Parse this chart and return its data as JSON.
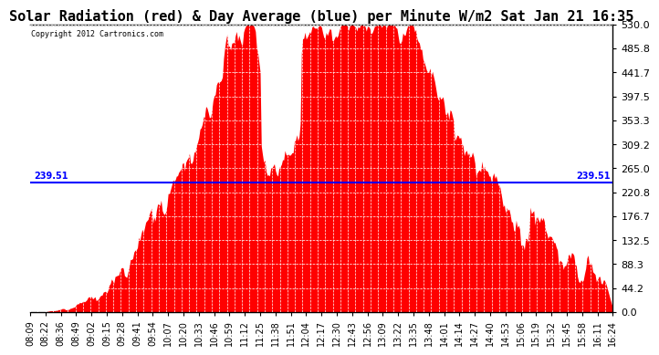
{
  "title": "Solar Radiation (red) & Day Average (blue) per Minute W/m2 Sat Jan 21 16:35",
  "copyright_text": "Copyright 2012 Cartronics.com",
  "avg_value": 239.51,
  "ymin": 0.0,
  "ymax": 530.0,
  "yticks": [
    0.0,
    44.2,
    88.3,
    132.5,
    176.7,
    220.8,
    265.0,
    309.2,
    353.3,
    397.5,
    441.7,
    485.8,
    530.0
  ],
  "bar_color": "#FF0000",
  "line_color": "#0000FF",
  "bg_color": "#FFFFFF",
  "title_fontsize": 11,
  "label_fontsize": 7,
  "avg_label_fontsize": 7,
  "x_labels": [
    "08:09",
    "08:22",
    "08:36",
    "08:49",
    "09:02",
    "09:15",
    "09:28",
    "09:41",
    "09:54",
    "10:07",
    "10:20",
    "10:33",
    "10:46",
    "10:59",
    "11:12",
    "11:25",
    "11:38",
    "11:51",
    "12:04",
    "12:17",
    "12:30",
    "12:43",
    "12:56",
    "13:09",
    "13:22",
    "13:35",
    "13:48",
    "14:01",
    "14:14",
    "14:27",
    "14:40",
    "14:53",
    "15:06",
    "15:19",
    "15:32",
    "15:45",
    "15:58",
    "16:11",
    "16:24"
  ],
  "n_points": 495
}
